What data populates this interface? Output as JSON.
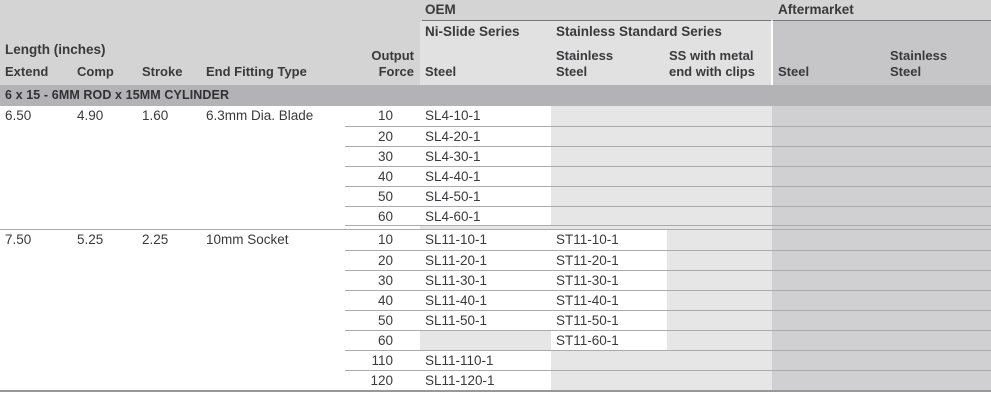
{
  "header": {
    "oem": "OEM",
    "aftermarket": "Aftermarket",
    "ni_slide_series": "Ni-Slide Series",
    "stainless_standard_series": "Stainless Standard Series",
    "length_inches": "Length (inches)",
    "col_extend": "Extend",
    "col_comp": "Comp",
    "col_stroke": "Stroke",
    "col_end_fitting": "End Fitting Type",
    "col_output_force": [
      "Output",
      "Force"
    ],
    "col_oem_steel": "Steel",
    "col_oem_stainless": [
      "Stainless",
      "Steel"
    ],
    "col_ss_metal": [
      "SS with metal",
      "end with clips"
    ],
    "col_am_steel": "Steel",
    "col_am_stainless": [
      "Stainless",
      "Steel"
    ]
  },
  "section_title": "6 x 15 - 6MM ROD x 15MM CYLINDER",
  "groups": [
    {
      "extend": "6.50",
      "comp": "4.90",
      "stroke": "1.60",
      "end_fitting": "6.3mm Dia. Blade",
      "rows": [
        {
          "output_force": "10",
          "oem_steel": "SL4-10-1",
          "oem_stainless": ""
        },
        {
          "output_force": "20",
          "oem_steel": "SL4-20-1",
          "oem_stainless": ""
        },
        {
          "output_force": "30",
          "oem_steel": "SL4-30-1",
          "oem_stainless": ""
        },
        {
          "output_force": "40",
          "oem_steel": "SL4-40-1",
          "oem_stainless": ""
        },
        {
          "output_force": "50",
          "oem_steel": "SL4-50-1",
          "oem_stainless": ""
        },
        {
          "output_force": "60",
          "oem_steel": "SL4-60-1",
          "oem_stainless": ""
        }
      ]
    },
    {
      "extend": "7.50",
      "comp": "5.25",
      "stroke": "2.25",
      "end_fitting": "10mm Socket",
      "rows": [
        {
          "output_force": "10",
          "oem_steel": "SL11-10-1",
          "oem_stainless": "ST11-10-1"
        },
        {
          "output_force": "20",
          "oem_steel": "SL11-20-1",
          "oem_stainless": "ST11-20-1"
        },
        {
          "output_force": "30",
          "oem_steel": "SL11-30-1",
          "oem_stainless": "ST11-30-1"
        },
        {
          "output_force": "40",
          "oem_steel": "SL11-40-1",
          "oem_stainless": "ST11-40-1"
        },
        {
          "output_force": "50",
          "oem_steel": "SL11-50-1",
          "oem_stainless": "ST11-50-1"
        },
        {
          "output_force": "60",
          "oem_steel": "",
          "oem_stainless": "ST11-60-1"
        },
        {
          "output_force": "110",
          "oem_steel": "SL11-110-1",
          "oem_stainless": ""
        },
        {
          "output_force": "120",
          "oem_steel": "SL11-120-1",
          "oem_stainless": ""
        }
      ]
    }
  ],
  "colors": {
    "header_bg": "#d4d4d5",
    "oem_panel": "#e1e1e2",
    "am_header": "#c6c6c8",
    "oem_empty": "#e6e6e7",
    "am_body": "#d0d0d2",
    "section_bar": "#b3b3b5",
    "separator": "#ababad",
    "rule": "#77777a",
    "bottom_rule": "#98989a",
    "text": "#3a3a3c",
    "cell_white": "#ffffff"
  }
}
